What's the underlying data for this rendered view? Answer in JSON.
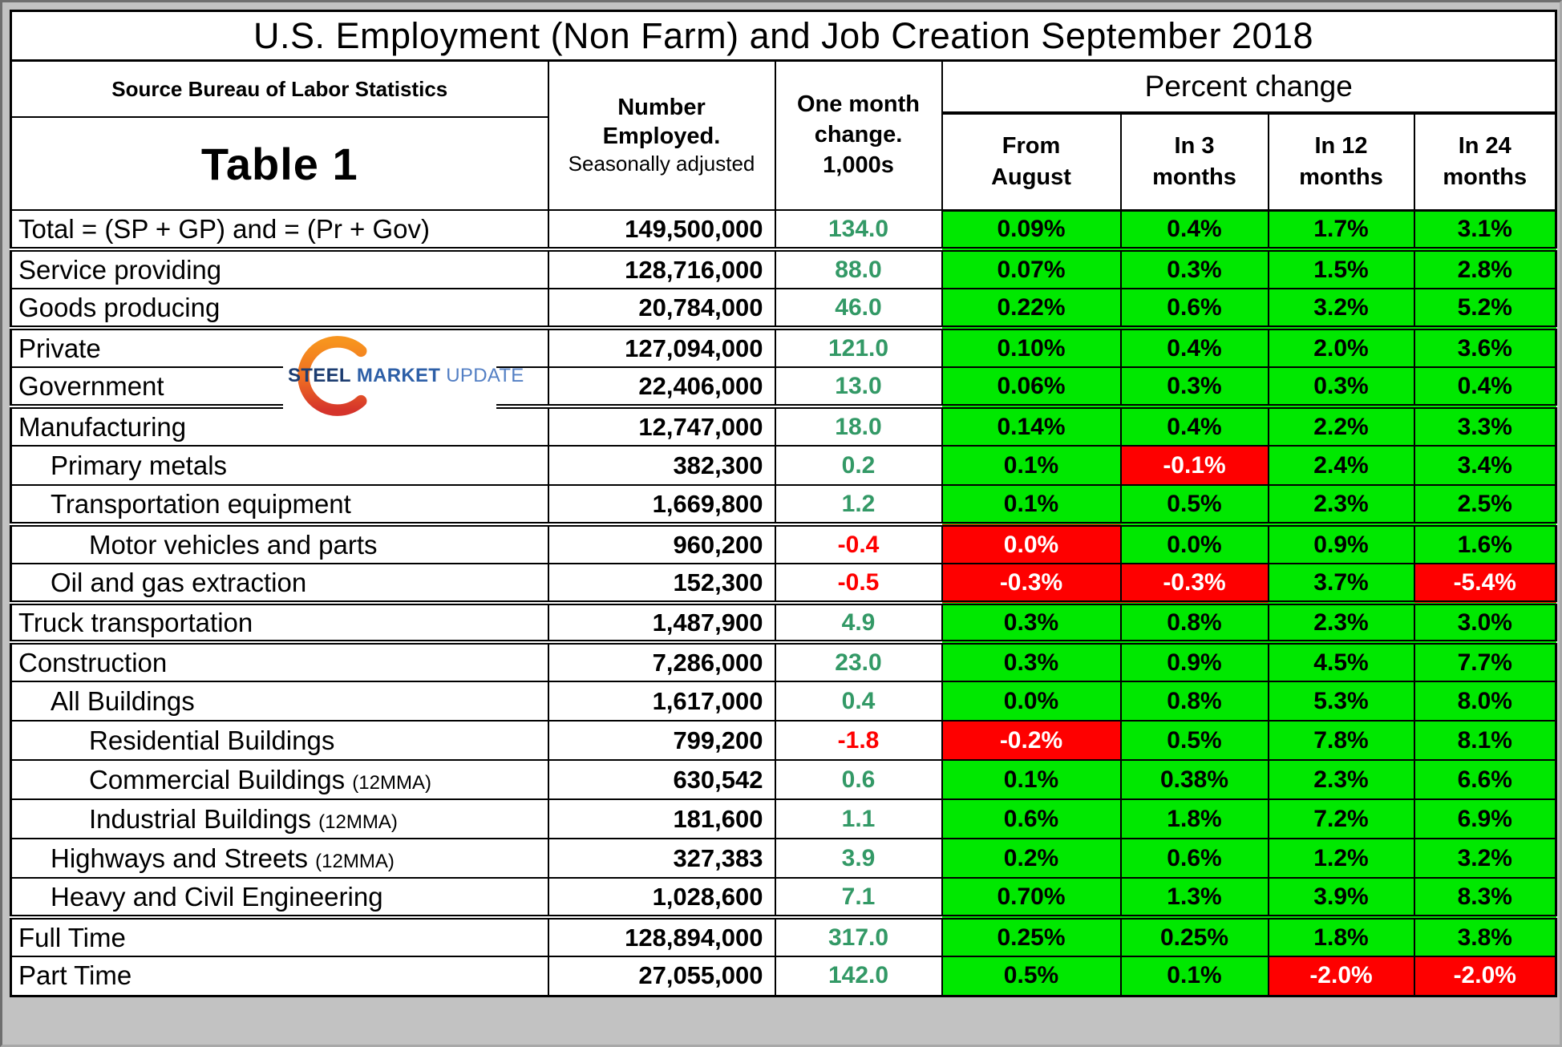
{
  "title": "U.S. Employment (Non Farm) and Job Creation September 2018",
  "header": {
    "source": "Source Bureau of Labor Statistics",
    "table_label": "Table 1",
    "employed_title": "Number\nEmployed.",
    "employed_sub": "Seasonally adjusted",
    "change_title": "One month\nchange.\n1,000s",
    "percent_group": "Percent change",
    "subcols": [
      "From\nAugust",
      "In 3\nmonths",
      "In 12\nmonths",
      "In 24\nmonths"
    ]
  },
  "logo": {
    "steel": "STEEL",
    "market": "MARKET",
    "update": "UPDATE"
  },
  "colors": {
    "positive_bg": "#00e800",
    "negative_bg": "#fe0000",
    "change_positive_text": "#339966",
    "change_negative_text": "#fe0000"
  },
  "table": {
    "rows": [
      {
        "label": "Total = (SP + GP) and = (Pr + Gov)",
        "indent": 0,
        "grp": false,
        "employed": "149,500,000",
        "change": "134.0",
        "chg_neg": false,
        "pcts": [
          {
            "v": "0.09%",
            "c": "g"
          },
          {
            "v": "0.4%",
            "c": "g"
          },
          {
            "v": "1.7%",
            "c": "g"
          },
          {
            "v": "3.1%",
            "c": "g"
          }
        ]
      },
      {
        "label": "Service providing",
        "indent": 0,
        "grp": true,
        "employed": "128,716,000",
        "change": "88.0",
        "chg_neg": false,
        "pcts": [
          {
            "v": "0.07%",
            "c": "g"
          },
          {
            "v": "0.3%",
            "c": "g"
          },
          {
            "v": "1.5%",
            "c": "g"
          },
          {
            "v": "2.8%",
            "c": "g"
          }
        ]
      },
      {
        "label": "Goods producing",
        "indent": 0,
        "grp": false,
        "employed": "20,784,000",
        "change": "46.0",
        "chg_neg": false,
        "pcts": [
          {
            "v": "0.22%",
            "c": "g"
          },
          {
            "v": "0.6%",
            "c": "g"
          },
          {
            "v": "3.2%",
            "c": "g"
          },
          {
            "v": "5.2%",
            "c": "g"
          }
        ]
      },
      {
        "label": "Private",
        "indent": 0,
        "grp": true,
        "employed": "127,094,000",
        "change": "121.0",
        "chg_neg": false,
        "pcts": [
          {
            "v": "0.10%",
            "c": "g"
          },
          {
            "v": "0.4%",
            "c": "g"
          },
          {
            "v": "2.0%",
            "c": "g"
          },
          {
            "v": "3.6%",
            "c": "g"
          }
        ]
      },
      {
        "label": "Government",
        "indent": 0,
        "grp": false,
        "employed": "22,406,000",
        "change": "13.0",
        "chg_neg": false,
        "pcts": [
          {
            "v": "0.06%",
            "c": "g"
          },
          {
            "v": "0.3%",
            "c": "g"
          },
          {
            "v": "0.3%",
            "c": "g"
          },
          {
            "v": "0.4%",
            "c": "g"
          }
        ]
      },
      {
        "label": "Manufacturing",
        "indent": 0,
        "grp": true,
        "employed": "12,747,000",
        "change": "18.0",
        "chg_neg": false,
        "pcts": [
          {
            "v": "0.14%",
            "c": "g"
          },
          {
            "v": "0.4%",
            "c": "g"
          },
          {
            "v": "2.2%",
            "c": "g"
          },
          {
            "v": "3.3%",
            "c": "g"
          }
        ]
      },
      {
        "label": "Primary metals",
        "indent": 1,
        "grp": false,
        "employed": "382,300",
        "change": "0.2",
        "chg_neg": false,
        "pcts": [
          {
            "v": "0.1%",
            "c": "g"
          },
          {
            "v": "-0.1%",
            "c": "r"
          },
          {
            "v": "2.4%",
            "c": "g"
          },
          {
            "v": "3.4%",
            "c": "g"
          }
        ]
      },
      {
        "label": "Transportation equipment",
        "indent": 1,
        "grp": false,
        "employed": "1,669,800",
        "change": "1.2",
        "chg_neg": false,
        "pcts": [
          {
            "v": "0.1%",
            "c": "g"
          },
          {
            "v": "0.5%",
            "c": "g"
          },
          {
            "v": "2.3%",
            "c": "g"
          },
          {
            "v": "2.5%",
            "c": "g"
          }
        ]
      },
      {
        "label": "Motor vehicles and parts",
        "indent": 2,
        "grp": true,
        "employed": "960,200",
        "change": "-0.4",
        "chg_neg": true,
        "pcts": [
          {
            "v": "0.0%",
            "c": "r"
          },
          {
            "v": "0.0%",
            "c": "g"
          },
          {
            "v": "0.9%",
            "c": "g"
          },
          {
            "v": "1.6%",
            "c": "g"
          }
        ]
      },
      {
        "label": "Oil and gas extraction",
        "indent": 1,
        "grp": false,
        "employed": "152,300",
        "change": "-0.5",
        "chg_neg": true,
        "pcts": [
          {
            "v": "-0.3%",
            "c": "r"
          },
          {
            "v": "-0.3%",
            "c": "r"
          },
          {
            "v": "3.7%",
            "c": "g"
          },
          {
            "v": "-5.4%",
            "c": "r"
          }
        ]
      },
      {
        "label": "Truck transportation",
        "indent": 0,
        "grp": true,
        "employed": "1,487,900",
        "change": "4.9",
        "chg_neg": false,
        "pcts": [
          {
            "v": "0.3%",
            "c": "g"
          },
          {
            "v": "0.8%",
            "c": "g"
          },
          {
            "v": "2.3%",
            "c": "g"
          },
          {
            "v": "3.0%",
            "c": "g"
          }
        ]
      },
      {
        "label": "Construction",
        "indent": 0,
        "grp": true,
        "employed": "7,286,000",
        "change": "23.0",
        "chg_neg": false,
        "pcts": [
          {
            "v": "0.3%",
            "c": "g"
          },
          {
            "v": "0.9%",
            "c": "g"
          },
          {
            "v": "4.5%",
            "c": "g"
          },
          {
            "v": "7.7%",
            "c": "g"
          }
        ]
      },
      {
        "label": "All Buildings",
        "indent": 1,
        "grp": false,
        "employed": "1,617,000",
        "change": "0.4",
        "chg_neg": false,
        "pcts": [
          {
            "v": "0.0%",
            "c": "g"
          },
          {
            "v": "0.8%",
            "c": "g"
          },
          {
            "v": "5.3%",
            "c": "g"
          },
          {
            "v": "8.0%",
            "c": "g"
          }
        ]
      },
      {
        "label": "Residential Buildings",
        "indent": 2,
        "grp": false,
        "employed": "799,200",
        "change": "-1.8",
        "chg_neg": true,
        "pcts": [
          {
            "v": "-0.2%",
            "c": "r"
          },
          {
            "v": "0.5%",
            "c": "g"
          },
          {
            "v": "7.8%",
            "c": "g"
          },
          {
            "v": "8.1%",
            "c": "g"
          }
        ]
      },
      {
        "label": "Commercial Buildings",
        "suffix": "(12MMA)",
        "indent": 2,
        "grp": false,
        "employed": "630,542",
        "change": "0.6",
        "chg_neg": false,
        "pcts": [
          {
            "v": "0.1%",
            "c": "g"
          },
          {
            "v": "0.38%",
            "c": "g"
          },
          {
            "v": "2.3%",
            "c": "g"
          },
          {
            "v": "6.6%",
            "c": "g"
          }
        ]
      },
      {
        "label": "Industrial Buildings",
        "suffix": "(12MMA)",
        "indent": 2,
        "grp": false,
        "employed": "181,600",
        "change": "1.1",
        "chg_neg": false,
        "pcts": [
          {
            "v": "0.6%",
            "c": "g"
          },
          {
            "v": "1.8%",
            "c": "g"
          },
          {
            "v": "7.2%",
            "c": "g"
          },
          {
            "v": "6.9%",
            "c": "g"
          }
        ]
      },
      {
        "label": "Highways and Streets",
        "suffix": "(12MMA)",
        "indent": 1,
        "grp": false,
        "employed": "327,383",
        "change": "3.9",
        "chg_neg": false,
        "pcts": [
          {
            "v": "0.2%",
            "c": "g"
          },
          {
            "v": "0.6%",
            "c": "g"
          },
          {
            "v": "1.2%",
            "c": "g"
          },
          {
            "v": "3.2%",
            "c": "g"
          }
        ]
      },
      {
        "label": "Heavy and Civil Engineering",
        "indent": 1,
        "grp": false,
        "employed": "1,028,600",
        "change": "7.1",
        "chg_neg": false,
        "pcts": [
          {
            "v": "0.70%",
            "c": "g"
          },
          {
            "v": "1.3%",
            "c": "g"
          },
          {
            "v": "3.9%",
            "c": "g"
          },
          {
            "v": "8.3%",
            "c": "g"
          }
        ]
      },
      {
        "label": "Full Time",
        "indent": 0,
        "grp": true,
        "employed": "128,894,000",
        "change": "317.0",
        "chg_neg": false,
        "pcts": [
          {
            "v": "0.25%",
            "c": "g"
          },
          {
            "v": "0.25%",
            "c": "g"
          },
          {
            "v": "1.8%",
            "c": "g"
          },
          {
            "v": "3.8%",
            "c": "g"
          }
        ]
      },
      {
        "label": "Part Time",
        "indent": 0,
        "grp": false,
        "employed": "27,055,000",
        "change": "142.0",
        "chg_neg": false,
        "pcts": [
          {
            "v": "0.5%",
            "c": "g"
          },
          {
            "v": "0.1%",
            "c": "g"
          },
          {
            "v": "-2.0%",
            "c": "r"
          },
          {
            "v": "-2.0%",
            "c": "r"
          }
        ]
      }
    ]
  }
}
